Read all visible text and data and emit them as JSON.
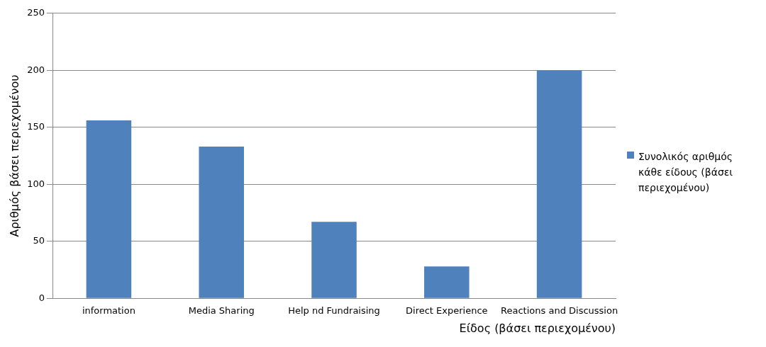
{
  "chart_data": {
    "type": "bar",
    "categories": [
      "information",
      "Media Sharing",
      "Help nd Fundraising",
      "Direct Experience",
      "Reactions and Discussion"
    ],
    "series": [
      {
        "name": "Συνολικός αριθμός κάθε είδους (βάσει περιεχομένου)",
        "color": "#4f81bd",
        "values": [
          156,
          133,
          67,
          28,
          200
        ]
      }
    ],
    "xlabel": "Είδος (βάσει περιεχομένου)",
    "ylabel": "Αριθμός βάσει περιεχομένου",
    "ylim": [
      0,
      250
    ],
    "yticks": [
      0,
      50,
      100,
      150,
      200,
      250
    ],
    "grid": "y",
    "legend": "right"
  }
}
